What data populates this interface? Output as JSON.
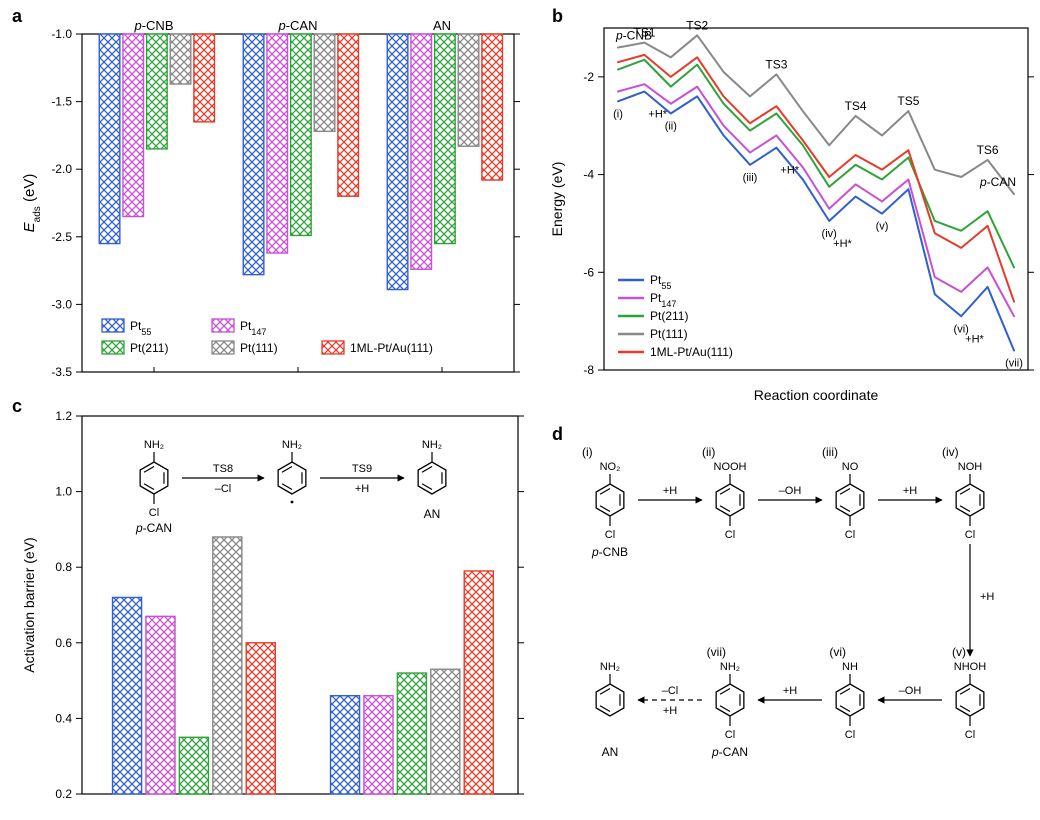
{
  "panels": {
    "a": "a",
    "b": "b",
    "c": "c",
    "d": "d"
  },
  "series": {
    "Pt55": {
      "label": "Pt₅₅",
      "color": "#2f5fd1"
    },
    "Pt147": {
      "label": "Pt₁₄₇",
      "color": "#c94fd3"
    },
    "Pt211": {
      "label": "Pt(211)",
      "color": "#2fa33b"
    },
    "Pt111": {
      "label": "Pt(111)",
      "color": "#888888"
    },
    "ML": {
      "label": "1ML-Pt/Au(111)",
      "color": "#e63b2a"
    }
  },
  "panelA": {
    "ylabel": "E_ads (eV)",
    "ylim": [
      -3.5,
      -1.0
    ],
    "ystep": 0.5,
    "groups": [
      "p-CNB",
      "p-CAN",
      "AN"
    ],
    "group_style": {
      "pCNB": "italic-prefix",
      "pCAN": "italic-prefix",
      "AN": "plain"
    },
    "values": {
      "p-CNB": {
        "Pt55": -2.55,
        "Pt147": -2.35,
        "Pt211": -1.85,
        "Pt111": -1.37,
        "ML": -1.65
      },
      "p-CAN": {
        "Pt55": -2.78,
        "Pt147": -2.62,
        "Pt211": -2.49,
        "Pt111": -1.72,
        "ML": -2.2
      },
      "AN": {
        "Pt55": -2.89,
        "Pt147": -2.74,
        "Pt211": -2.55,
        "Pt111": -1.83,
        "ML": -2.08
      }
    },
    "legend_order1": [
      "Pt55",
      "Pt147"
    ],
    "legend_order2": [
      "Pt211",
      "Pt111",
      "ML"
    ]
  },
  "panelB": {
    "ylabel": "Energy (eV)",
    "xlabel": "Reaction coordinate",
    "ylim": [
      -8,
      -2
    ],
    "ystep": 2,
    "ts_labels": [
      "TS1",
      "TS2",
      "TS3",
      "TS4",
      "TS5",
      "TS6"
    ],
    "state_labels": [
      "(i)",
      "(ii)",
      "(iii)",
      "(iv)",
      "(v)",
      "(vi)",
      "(vii)"
    ],
    "hstar": "+H*",
    "top_label": "p-CNB",
    "end_label": "p-CAN",
    "legend_order": [
      "Pt55",
      "Pt147",
      "Pt211",
      "Pt111",
      "ML"
    ],
    "curves": {
      "Pt111": [
        -1.4,
        -1.3,
        -1.6,
        -1.15,
        -1.9,
        -2.4,
        -1.95,
        -2.7,
        -3.4,
        -2.8,
        -3.2,
        -2.7,
        -3.9,
        -4.05,
        -3.7,
        -4.4
      ],
      "Pt211": [
        -1.85,
        -1.65,
        -2.2,
        -1.75,
        -2.55,
        -3.1,
        -2.75,
        -3.4,
        -4.25,
        -3.8,
        -4.1,
        -3.65,
        -4.95,
        -5.15,
        -4.75,
        -5.9
      ],
      "ML": [
        -1.7,
        -1.55,
        -2.0,
        -1.6,
        -2.4,
        -2.95,
        -2.6,
        -3.3,
        -4.05,
        -3.6,
        -3.9,
        -3.5,
        -5.2,
        -5.5,
        -5.05,
        -6.6
      ],
      "Pt147": [
        -2.3,
        -2.15,
        -2.55,
        -2.2,
        -3.0,
        -3.55,
        -3.2,
        -3.85,
        -4.7,
        -4.2,
        -4.55,
        -4.1,
        -6.1,
        -6.4,
        -5.9,
        -6.9
      ],
      "Pt55": [
        -2.5,
        -2.3,
        -2.75,
        -2.4,
        -3.2,
        -3.8,
        -3.45,
        -4.1,
        -4.95,
        -4.45,
        -4.8,
        -4.3,
        -6.45,
        -6.9,
        -6.3,
        -7.6
      ]
    },
    "line_width": 2
  },
  "panelC": {
    "ylabel": "Activation barrier (eV)",
    "ylim": [
      0.2,
      1.2
    ],
    "ystep": 0.2,
    "groups": [
      "TS8",
      "TS9"
    ],
    "order": [
      "Pt55",
      "Pt147",
      "Pt211",
      "Pt111",
      "ML"
    ],
    "values": {
      "TS8": {
        "Pt55": 0.72,
        "Pt147": 0.67,
        "Pt211": 0.35,
        "Pt111": 0.88,
        "ML": 0.6
      },
      "TS9": {
        "Pt55": 0.46,
        "Pt147": 0.46,
        "Pt211": 0.52,
        "Pt111": 0.53,
        "ML": 0.79
      }
    },
    "scheme": {
      "mol_left": "p-CAN",
      "mol_left_top": "NH₂",
      "mol_left_bottom": "Cl",
      "rxn1": "TS8",
      "rxn1_sub": "–Cl",
      "mol_mid_top": "NH₂",
      "rxn2": "TS9",
      "rxn2_sub": "+H",
      "mol_right_top": "NH₂",
      "mol_right": "AN"
    }
  },
  "panelD": {
    "steps": [
      {
        "tag": "(i)",
        "top": "NO₂",
        "bottom": "Cl",
        "below": "p-CNB"
      },
      {
        "tag": "(ii)",
        "top": "NOOH",
        "bottom": "Cl"
      },
      {
        "tag": "(iii)",
        "top": "NO",
        "bottom": "Cl"
      },
      {
        "tag": "(iv)",
        "top": "NOH",
        "bottom": "Cl"
      },
      {
        "tag": "(v)",
        "top": "NHOH",
        "bottom": "Cl"
      },
      {
        "tag": "(vi)",
        "top": "NH",
        "bottom": "Cl"
      },
      {
        "tag": "(vii)",
        "top": "NH₂",
        "bottom": "Cl",
        "below": "p-CAN"
      },
      {
        "tag": "",
        "top": "NH₂",
        "bottom": "",
        "below": "AN"
      }
    ],
    "arrows_top": [
      "+H",
      "–OH",
      "+H"
    ],
    "arrow_down": "+H",
    "arrows_bottom": [
      "–OH",
      "+H",
      "+H"
    ],
    "arrow_last_top": "–Cl",
    "arrow_last_bottom": "+H",
    "dashed_last": true
  },
  "style": {
    "hatch_stroke_width": 1.4,
    "bar_border": "#000000",
    "tick_color": "#000000",
    "axis_width": 1.2,
    "font_axis_label": 14,
    "font_tick": 12,
    "font_legend": 12,
    "background": "#ffffff"
  }
}
